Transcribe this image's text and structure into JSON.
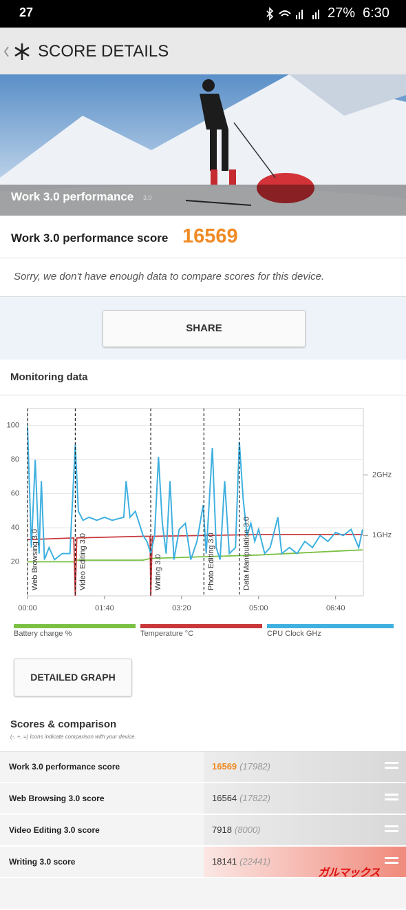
{
  "status_bar": {
    "notification": "27",
    "battery": "27%",
    "clock": "6:30"
  },
  "header": {
    "title": "SCORE DETAILS"
  },
  "hero": {
    "title": "Work 3.0 performance",
    "version": "3.0"
  },
  "score": {
    "label": "Work 3.0 performance score",
    "value": 16569
  },
  "note": "Sorry, we don't have enough data to compare scores for this device.",
  "share_button": "SHARE",
  "monitoring": {
    "title": "Monitoring data"
  },
  "chart_data": {
    "type": "line",
    "xlim": [
      0,
      436
    ],
    "ylim": [
      0,
      110
    ],
    "y2lim": [
      0,
      3.1
    ],
    "xticks": [
      {
        "value": 0,
        "label": "00:00"
      },
      {
        "value": 100,
        "label": "01:40"
      },
      {
        "value": 200,
        "label": "03:20"
      },
      {
        "value": 300,
        "label": "05:00"
      },
      {
        "value": 400,
        "label": "06:40"
      }
    ],
    "yticks": [
      20,
      40,
      60,
      80,
      100
    ],
    "y2ticks": [
      {
        "value": 1,
        "label": "1GHz"
      },
      {
        "value": 2,
        "label": "2GHz"
      }
    ],
    "grid": true,
    "sections": [
      {
        "label": "Web Browsing 3.0",
        "x": 0
      },
      {
        "label": "Video Editing 3.0",
        "x": 62
      },
      {
        "label": "Writing 3.0",
        "x": 160
      },
      {
        "label": "Photo Editing 3.0",
        "x": 229
      },
      {
        "label": "Data Manipulation 3.0",
        "x": 275
      }
    ],
    "series": [
      {
        "name": "Battery charge %",
        "color": "#7ac143",
        "x": [
          0,
          60,
          62,
          150,
          160,
          300,
          435
        ],
        "values": [
          20,
          20,
          21,
          21,
          22,
          24,
          27
        ]
      },
      {
        "name": "Temperature °C",
        "color": "#c8373a",
        "x": [
          0,
          60,
          62,
          64,
          150,
          159,
          160,
          162,
          300,
          435
        ],
        "values": [
          33,
          34,
          0,
          34,
          35,
          35,
          0,
          35,
          36,
          36
        ]
      },
      {
        "name": "CPU Clock GHz",
        "color": "#3fb0e0",
        "axis": "y2",
        "x": [
          0,
          5,
          10,
          15,
          18,
          22,
          28,
          35,
          45,
          55,
          62,
          66,
          72,
          80,
          90,
          100,
          110,
          125,
          128,
          133,
          140,
          150,
          155,
          160,
          165,
          170,
          175,
          180,
          185,
          190,
          197,
          205,
          212,
          220,
          228,
          232,
          240,
          245,
          250,
          256,
          262,
          270,
          275,
          280,
          285,
          290,
          295,
          300,
          308,
          315,
          325,
          330,
          340,
          350,
          360,
          370,
          380,
          390,
          400,
          410,
          420,
          430,
          435
        ],
        "values": [
          2.8,
          0.8,
          2.25,
          0.7,
          1.9,
          0.6,
          0.8,
          0.6,
          0.7,
          0.7,
          2.5,
          1.4,
          1.25,
          1.3,
          1.25,
          1.3,
          1.25,
          1.3,
          1.9,
          1.3,
          1.4,
          1.0,
          0.9,
          0.7,
          1.0,
          2.3,
          1.2,
          0.7,
          1.9,
          0.6,
          1.1,
          1.2,
          0.6,
          0.9,
          1.5,
          0.7,
          2.45,
          0.8,
          0.6,
          1.9,
          0.7,
          0.8,
          2.55,
          1.6,
          1.0,
          1.2,
          0.9,
          1.1,
          0.7,
          0.8,
          1.3,
          0.7,
          0.8,
          0.7,
          0.9,
          0.8,
          1.0,
          0.9,
          1.05,
          1.0,
          1.1,
          0.8,
          1.1
        ]
      }
    ]
  },
  "detailed_button": "DETAILED GRAPH",
  "scores": {
    "title": "Scores & comparison",
    "subtitle": "(-, +, =) Icons indicate comparison with your device.",
    "rows": [
      {
        "name": "Work 3.0 performance score",
        "score": 16569,
        "reference": "(17982)"
      },
      {
        "name": "Web Browsing 3.0 score",
        "score": 16564,
        "reference": "(17822)"
      },
      {
        "name": "Video Editing 3.0 score",
        "score": 7918,
        "reference": "(8000)"
      },
      {
        "name": "Writing 3.0 score",
        "score": 18141,
        "reference": "(22441)"
      }
    ]
  },
  "watermark": "ガルマックス"
}
